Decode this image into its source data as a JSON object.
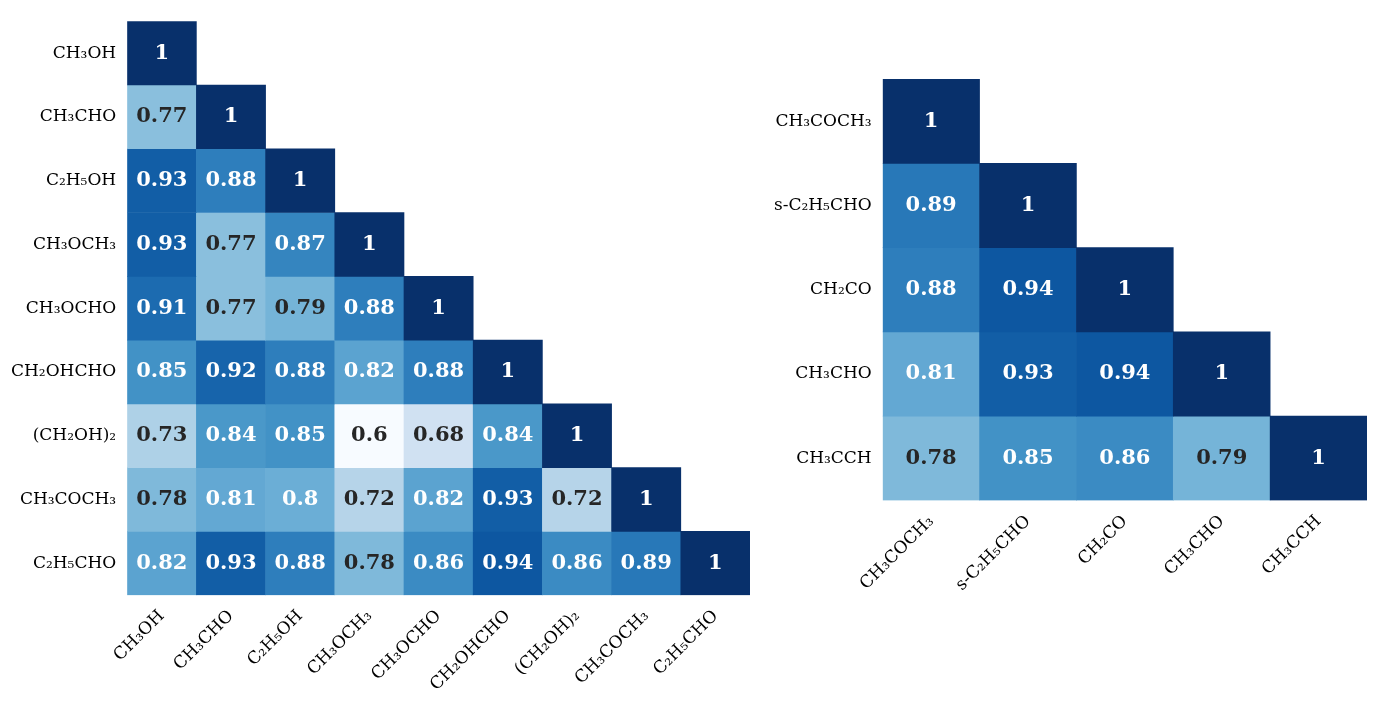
{
  "chart_data": [
    {
      "type": "heatmap",
      "data_labels": true,
      "categories": [
        "CH₃OH",
        "CH₃CHO",
        "C₂H₅OH",
        "CH₃OCH₃",
        "CH₃OCHO",
        "CH₂OHCHO",
        "(CH₂OH)₂",
        "CH₃COCH₃",
        "C₂H₅CHO"
      ],
      "y_categories": [
        "CH₃OH",
        "CH₃CHO",
        "C₂H₅OH",
        "CH₃OCH₃",
        "CH₃OCHO",
        "CH₂OHCHO",
        "(CH₂OH)₂",
        "CH₃COCH₃",
        "C₂H₅CHO"
      ],
      "cells": [
        [
          1,
          null,
          null,
          null,
          null,
          null,
          null,
          null,
          null
        ],
        [
          0.77,
          1,
          null,
          null,
          null,
          null,
          null,
          null,
          null
        ],
        [
          0.93,
          0.88,
          1,
          null,
          null,
          null,
          null,
          null,
          null
        ],
        [
          0.93,
          0.77,
          0.87,
          1,
          null,
          null,
          null,
          null,
          null
        ],
        [
          0.91,
          0.77,
          0.79,
          0.88,
          1,
          null,
          null,
          null,
          null
        ],
        [
          0.85,
          0.92,
          0.88,
          0.82,
          0.88,
          1,
          null,
          null,
          null
        ],
        [
          0.73,
          0.84,
          0.85,
          0.6,
          0.68,
          0.84,
          1,
          null,
          null
        ],
        [
          0.78,
          0.81,
          0.8,
          0.72,
          0.82,
          0.93,
          0.72,
          1,
          null
        ],
        [
          0.82,
          0.93,
          0.88,
          0.78,
          0.86,
          0.94,
          0.86,
          0.89,
          1
        ]
      ]
    },
    {
      "type": "heatmap",
      "data_labels": true,
      "categories": [
        "CH₃COCH₃",
        "s-C₂H₅CHO",
        "CH₂CO",
        "CH₃CHO",
        "CH₃CCH"
      ],
      "y_categories": [
        "CH₃COCH₃",
        "s-C₂H₅CHO",
        "CH₂CO",
        "CH₃CHO",
        "CH₃CCH"
      ],
      "cells": [
        [
          1,
          null,
          null,
          null,
          null
        ],
        [
          0.89,
          1,
          null,
          null,
          null
        ],
        [
          0.88,
          0.94,
          1,
          null,
          null
        ],
        [
          0.81,
          0.93,
          0.94,
          1,
          null
        ],
        [
          0.78,
          0.85,
          0.86,
          0.79,
          1
        ]
      ]
    }
  ]
}
